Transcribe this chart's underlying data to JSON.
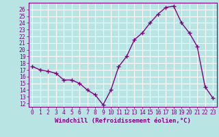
{
  "x": [
    0,
    1,
    2,
    3,
    4,
    5,
    6,
    7,
    8,
    9,
    10,
    11,
    12,
    13,
    14,
    15,
    16,
    17,
    18,
    19,
    20,
    21,
    22,
    23
  ],
  "y": [
    17.5,
    17.0,
    16.8,
    16.5,
    15.5,
    15.5,
    15.0,
    14.0,
    13.3,
    11.8,
    14.0,
    17.5,
    19.0,
    21.5,
    22.5,
    24.0,
    25.3,
    26.3,
    26.5,
    24.0,
    22.5,
    20.5,
    14.5,
    12.8
  ],
  "line_color": "#800080",
  "marker": "+",
  "marker_size": 4,
  "line_width": 1.0,
  "bg_color": "#b8e4e4",
  "grid_color": "#ffffff",
  "xlabel": "Windchill (Refroidissement éolien,°C)",
  "xlabel_color": "#800080",
  "xlabel_fontsize": 6.5,
  "tick_color": "#800080",
  "tick_fontsize": 5.8,
  "ylim": [
    11.5,
    27.0
  ],
  "xlim": [
    -0.5,
    23.5
  ],
  "yticks": [
    12,
    13,
    14,
    15,
    16,
    17,
    18,
    19,
    20,
    21,
    22,
    23,
    24,
    25,
    26
  ],
  "xticks": [
    0,
    1,
    2,
    3,
    4,
    5,
    6,
    7,
    8,
    9,
    10,
    11,
    12,
    13,
    14,
    15,
    16,
    17,
    18,
    19,
    20,
    21,
    22,
    23
  ]
}
